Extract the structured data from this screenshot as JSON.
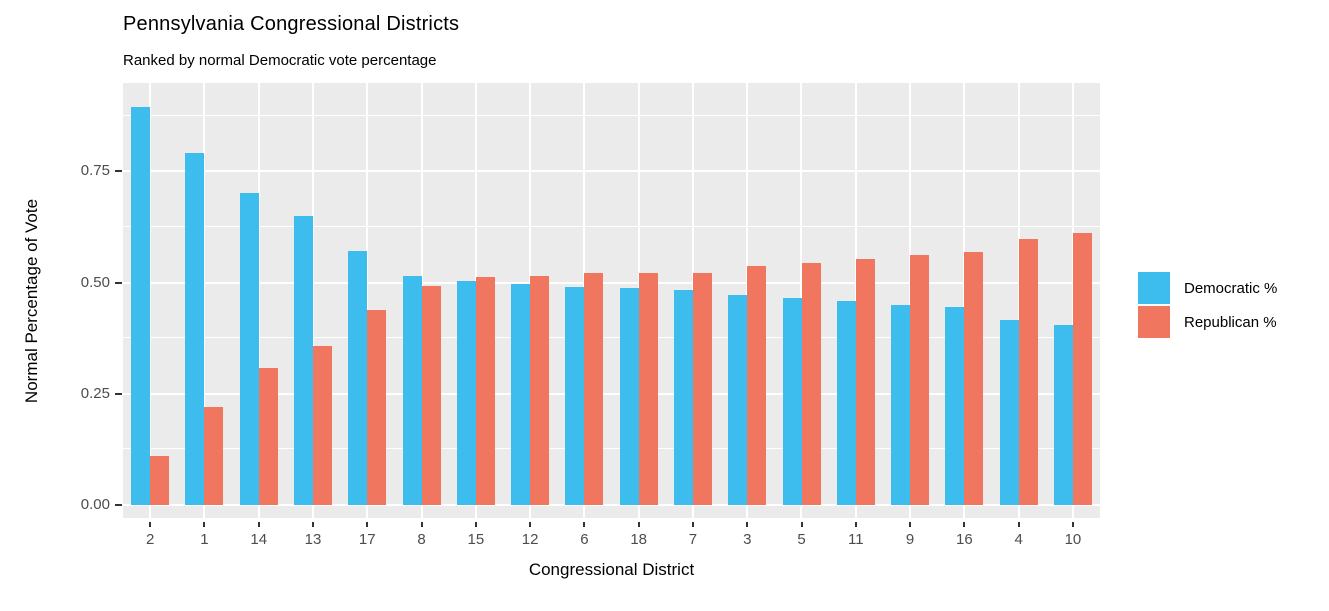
{
  "title": "Pennsylvania Congressional Districts",
  "subtitle": "Ranked by normal Democratic vote percentage",
  "chart_data": {
    "type": "bar",
    "title": "Pennsylvania Congressional Districts",
    "subtitle": "Ranked by normal Democratic vote percentage",
    "xlabel": "Congressional District",
    "ylabel": "Normal Percentage of Vote",
    "categories": [
      "2",
      "1",
      "14",
      "13",
      "17",
      "8",
      "15",
      "12",
      "6",
      "18",
      "7",
      "3",
      "5",
      "11",
      "9",
      "16",
      "4",
      "10"
    ],
    "series": [
      {
        "name": "Democratic %",
        "color": "#3CBDEE",
        "values": [
          0.895,
          0.79,
          0.7,
          0.65,
          0.57,
          0.515,
          0.503,
          0.497,
          0.49,
          0.487,
          0.483,
          0.473,
          0.466,
          0.458,
          0.45,
          0.445,
          0.416,
          0.405
        ]
      },
      {
        "name": "Republican %",
        "color": "#F0765F",
        "values": [
          0.11,
          0.22,
          0.307,
          0.357,
          0.438,
          0.493,
          0.512,
          0.515,
          0.522,
          0.522,
          0.522,
          0.536,
          0.543,
          0.552,
          0.561,
          0.568,
          0.597,
          0.611
        ]
      }
    ],
    "yticks": [
      0,
      0.25,
      0.5,
      0.75
    ],
    "ytick_labels": [
      "0.00",
      "0.25",
      "0.50",
      "0.75"
    ],
    "ylim": [
      0,
      0.94
    ],
    "grid": "on",
    "grid_color": "#ffffff",
    "panel_background": "#EBEBEB",
    "legend_position": "right",
    "bar_layout": "grouped-dodge"
  }
}
